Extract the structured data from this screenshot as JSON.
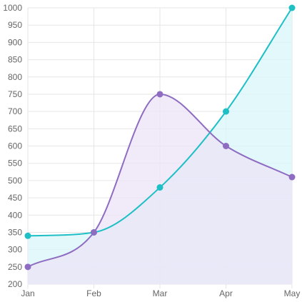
{
  "chart_data": {
    "type": "area",
    "categories": [
      "Jan",
      "Feb",
      "Mar",
      "Apr",
      "May"
    ],
    "ylim": [
      200,
      1000
    ],
    "y_ticks": [
      200,
      250,
      300,
      350,
      400,
      450,
      500,
      550,
      600,
      650,
      700,
      750,
      800,
      850,
      900,
      950,
      1000
    ],
    "grid": true,
    "title": "",
    "xlabel": "",
    "ylabel": "",
    "series": [
      {
        "values": [
          340,
          350,
          480,
          700,
          1000
        ],
        "line_color": "#1fbfc6",
        "fill_color": "#d8f6f9",
        "point_color": "#1fbfc6"
      },
      {
        "values": [
          250,
          350,
          750,
          600,
          510
        ],
        "line_color": "#8e6cc2",
        "fill_color": "#ece4f7",
        "point_color": "#8e6cc2"
      }
    ]
  }
}
